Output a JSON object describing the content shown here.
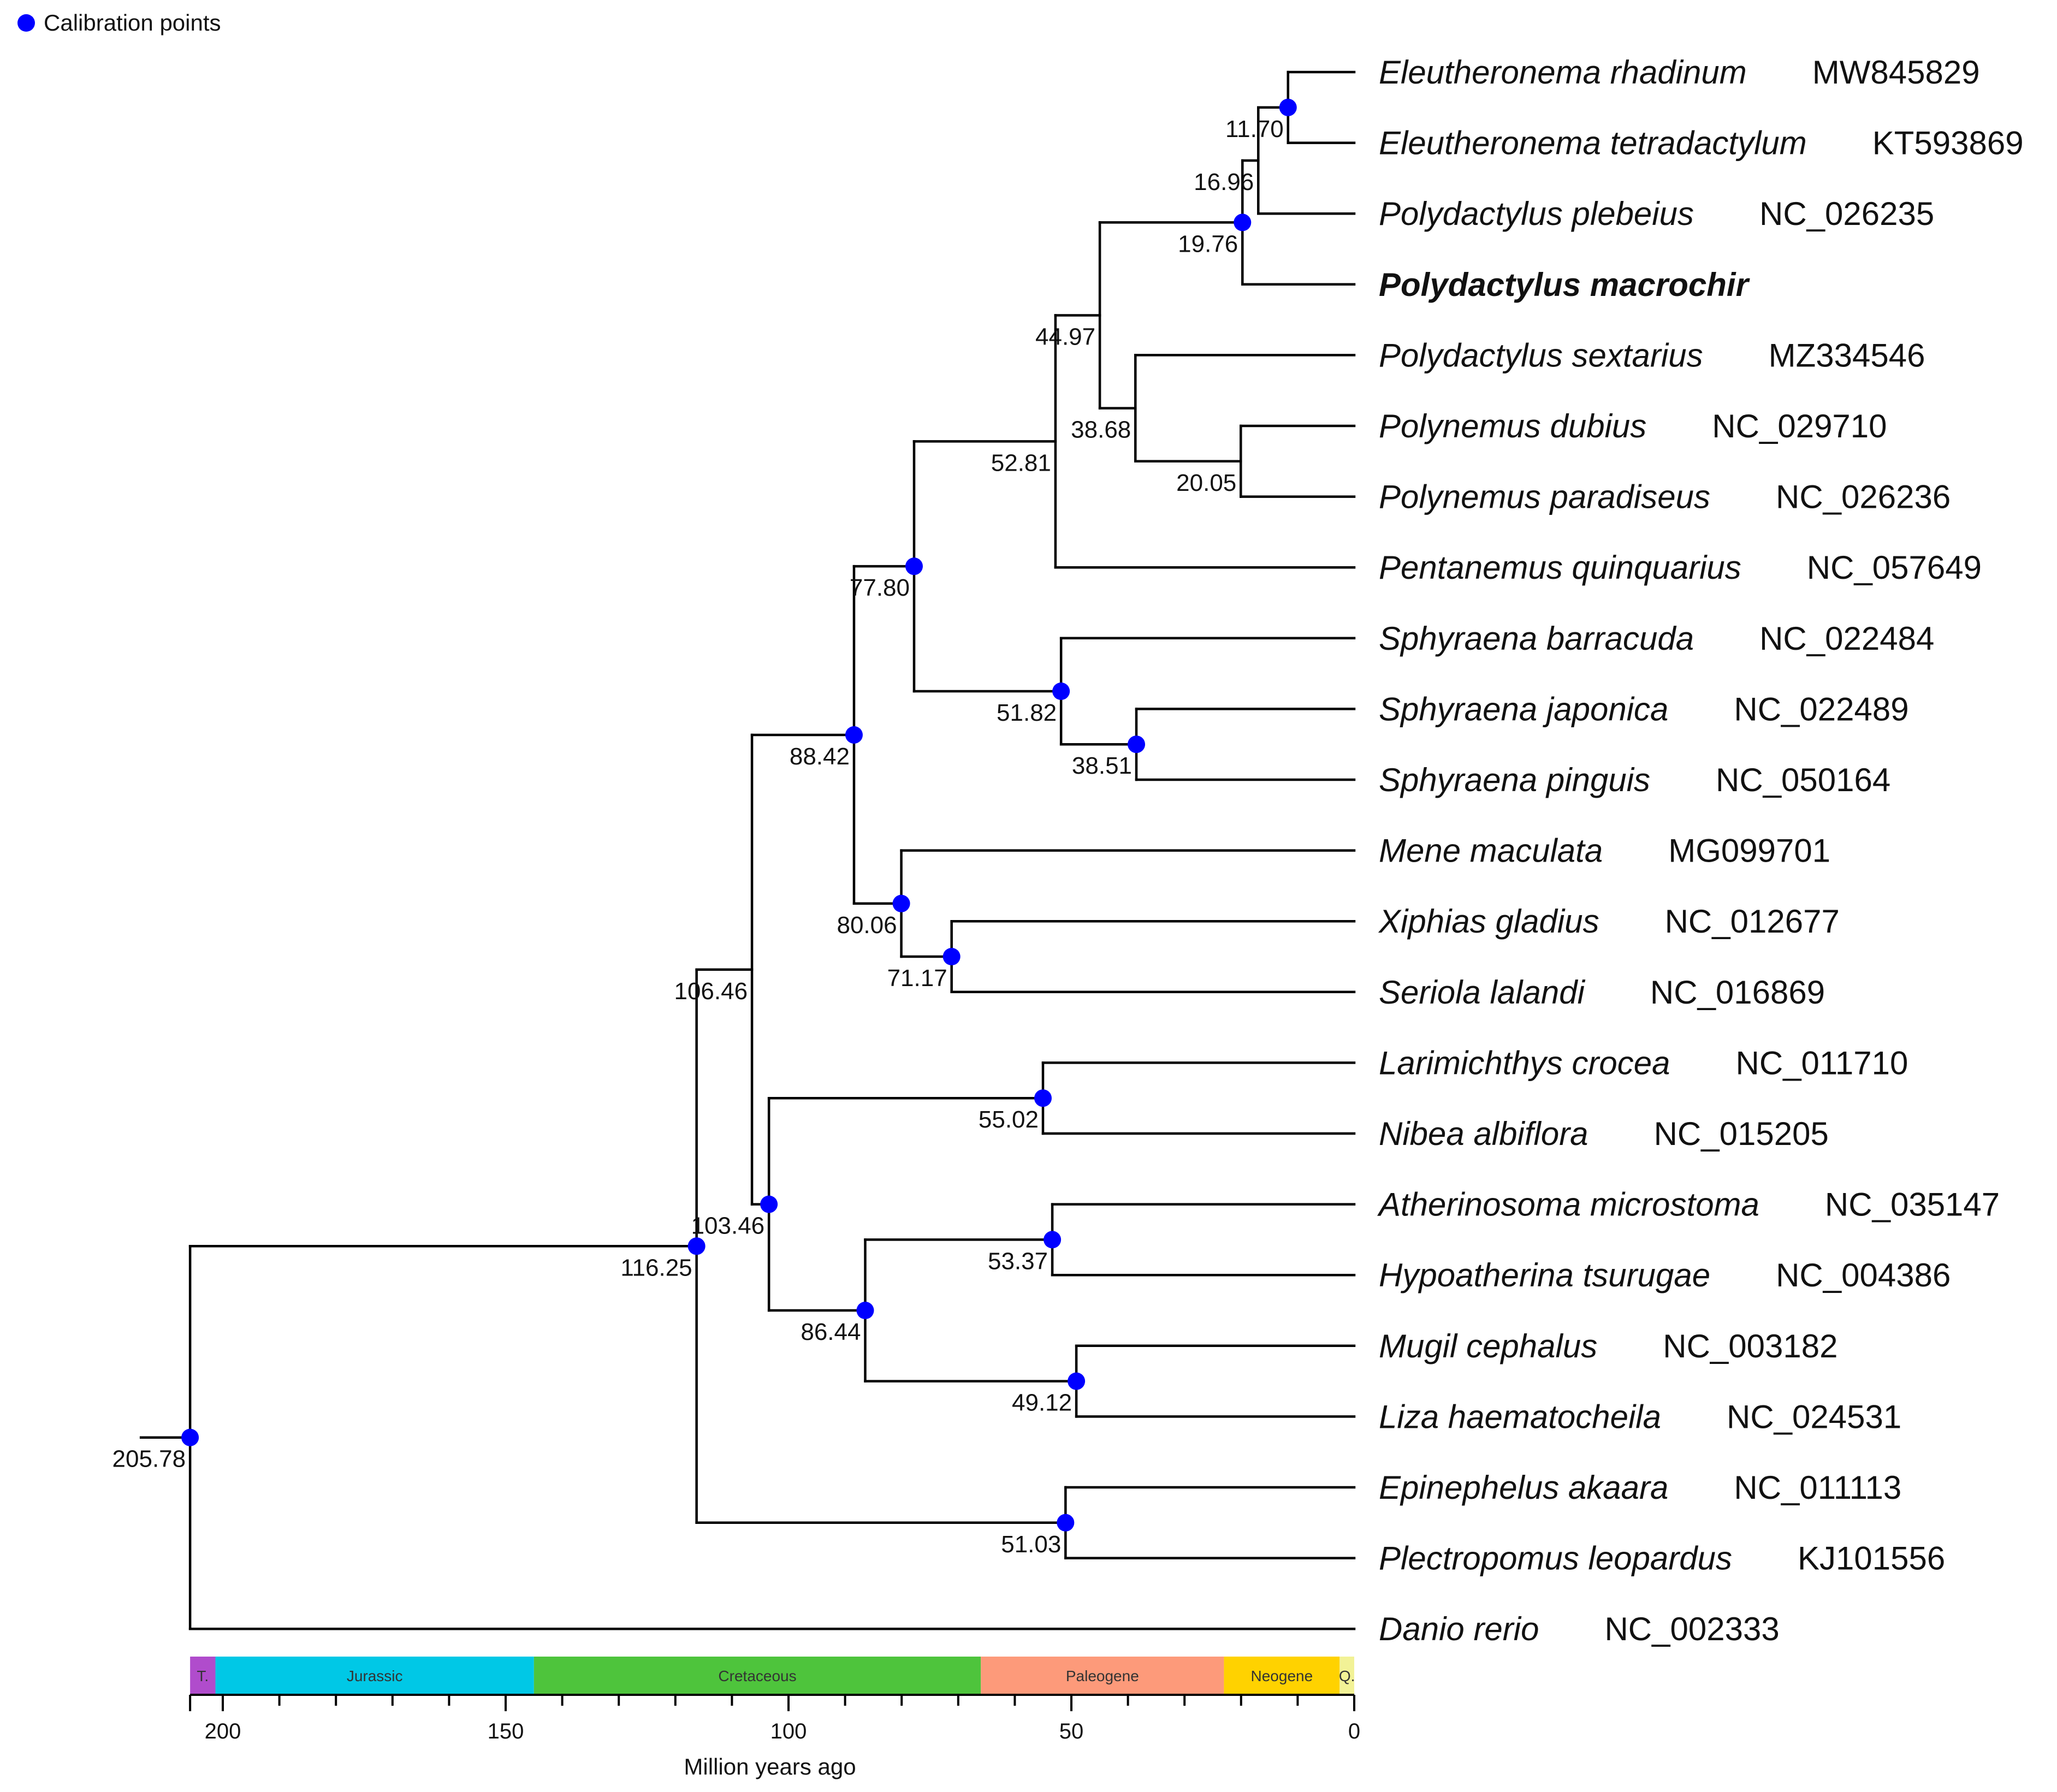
{
  "legend": {
    "label": "Calibration points",
    "color": "#0000ff"
  },
  "axis": {
    "title": "Million years ago",
    "ticks": [
      200,
      150,
      100,
      50,
      0
    ],
    "max": 205.78
  },
  "periods": [
    {
      "name": "T.",
      "start": 205.78,
      "end": 201.3,
      "color": "#b04ccc"
    },
    {
      "name": "Jurassic",
      "start": 201.3,
      "end": 145.0,
      "color": "#00c8e6"
    },
    {
      "name": "Cretaceous",
      "start": 145.0,
      "end": 66.0,
      "color": "#4ec43c"
    },
    {
      "name": "Paleogene",
      "start": 66.0,
      "end": 23.03,
      "color": "#fd9a7a"
    },
    {
      "name": "Neogene",
      "start": 23.03,
      "end": 2.58,
      "color": "#ffd200"
    },
    {
      "name": "Q.",
      "start": 2.58,
      "end": 0,
      "color": "#f2f296"
    }
  ],
  "taxa": [
    {
      "name": "Eleutheronema rhadinum",
      "accession": "MW845829"
    },
    {
      "name": "Eleutheronema tetradactylum",
      "accession": "KT593869"
    },
    {
      "name": "Polydactylus plebeius",
      "accession": "NC_026235"
    },
    {
      "name": "Polydactylus macrochir",
      "accession": "",
      "highlight": true
    },
    {
      "name": "Polydactylus sextarius",
      "accession": "MZ334546"
    },
    {
      "name": "Polynemus dubius",
      "accession": "NC_029710"
    },
    {
      "name": "Polynemus paradiseus",
      "accession": "NC_026236"
    },
    {
      "name": "Pentanemus quinquarius",
      "accession": "NC_057649"
    },
    {
      "name": "Sphyraena barracuda",
      "accession": "NC_022484"
    },
    {
      "name": "Sphyraena japonica",
      "accession": "NC_022489"
    },
    {
      "name": "Sphyraena pinguis",
      "accession": "NC_050164"
    },
    {
      "name": "Mene maculata",
      "accession": "MG099701"
    },
    {
      "name": "Xiphias gladius",
      "accession": "NC_012677"
    },
    {
      "name": "Seriola lalandi",
      "accession": "NC_016869"
    },
    {
      "name": "Larimichthys crocea",
      "accession": "NC_011710"
    },
    {
      "name": "Nibea albiflora",
      "accession": "NC_015205"
    },
    {
      "name": "Atherinosoma microstoma",
      "accession": "NC_035147"
    },
    {
      "name": "Hypoatherina tsurugae",
      "accession": "NC_004386"
    },
    {
      "name": "Mugil cephalus",
      "accession": "NC_003182"
    },
    {
      "name": "Liza haematocheila",
      "accession": "NC_024531"
    },
    {
      "name": "Epinephelus akaara",
      "accession": "NC_011113"
    },
    {
      "name": "Plectropomus leopardus",
      "accession": "KJ101556"
    },
    {
      "name": "Danio rerio",
      "accession": "NC_002333"
    }
  ],
  "tree": {
    "age": 205.78,
    "label": "205.78",
    "calibrated": true,
    "children": [
      {
        "age": 116.25,
        "label": "116.25",
        "calibrated": true,
        "children": [
          {
            "age": 106.46,
            "label": "106.46",
            "calibrated": false,
            "children": [
              {
                "age": 88.42,
                "label": "88.42",
                "calibrated": true,
                "children": [
                  {
                    "age": 77.8,
                    "label": "77.80",
                    "calibrated": true,
                    "children": [
                      {
                        "age": 52.81,
                        "label": "52.81",
                        "calibrated": false,
                        "children": [
                          {
                            "age": 44.97,
                            "label": "44.97",
                            "calibrated": false,
                            "children": [
                              {
                                "age": 19.76,
                                "label": "19.76",
                                "calibrated": true,
                                "children": [
                                  {
                                    "age": 16.96,
                                    "label": "16.96",
                                    "calibrated": false,
                                    "children": [
                                      {
                                        "age": 11.7,
                                        "label": "11.70",
                                        "calibrated": true,
                                        "children": [
                                          {
                                            "taxon": 0
                                          },
                                          {
                                            "taxon": 1
                                          }
                                        ]
                                      },
                                      {
                                        "taxon": 2
                                      }
                                    ]
                                  },
                                  {
                                    "taxon": 3
                                  }
                                ]
                              },
                              {
                                "age": 38.68,
                                "label": "38.68",
                                "calibrated": false,
                                "children": [
                                  {
                                    "taxon": 4
                                  },
                                  {
                                    "age": 20.05,
                                    "label": "20.05",
                                    "calibrated": false,
                                    "children": [
                                      {
                                        "taxon": 5
                                      },
                                      {
                                        "taxon": 6
                                      }
                                    ]
                                  }
                                ]
                              }
                            ]
                          },
                          {
                            "taxon": 7
                          }
                        ]
                      },
                      {
                        "age": 51.82,
                        "label": "51.82",
                        "calibrated": true,
                        "children": [
                          {
                            "taxon": 8
                          },
                          {
                            "age": 38.51,
                            "label": "38.51",
                            "calibrated": true,
                            "children": [
                              {
                                "taxon": 9
                              },
                              {
                                "taxon": 10
                              }
                            ]
                          }
                        ]
                      }
                    ]
                  },
                  {
                    "age": 80.06,
                    "label": "80.06",
                    "calibrated": true,
                    "children": [
                      {
                        "taxon": 11
                      },
                      {
                        "age": 71.17,
                        "label": "71.17",
                        "calibrated": true,
                        "children": [
                          {
                            "taxon": 12
                          },
                          {
                            "taxon": 13
                          }
                        ]
                      }
                    ]
                  }
                ]
              },
              {
                "age": 103.46,
                "label": "103.46",
                "calibrated": true,
                "children": [
                  {
                    "age": 55.02,
                    "label": "55.02",
                    "calibrated": true,
                    "children": [
                      {
                        "taxon": 14
                      },
                      {
                        "taxon": 15
                      }
                    ]
                  },
                  {
                    "age": 86.44,
                    "label": "86.44",
                    "calibrated": true,
                    "children": [
                      {
                        "age": 53.37,
                        "label": "53.37",
                        "calibrated": true,
                        "children": [
                          {
                            "taxon": 16
                          },
                          {
                            "taxon": 17
                          }
                        ]
                      },
                      {
                        "age": 49.12,
                        "label": "49.12",
                        "calibrated": true,
                        "children": [
                          {
                            "taxon": 18
                          },
                          {
                            "taxon": 19
                          }
                        ]
                      }
                    ]
                  }
                ]
              }
            ]
          },
          {
            "age": 51.03,
            "label": "51.03",
            "calibrated": true,
            "children": [
              {
                "taxon": 20
              },
              {
                "taxon": 21
              }
            ]
          }
        ]
      },
      {
        "taxon": 22
      }
    ]
  }
}
